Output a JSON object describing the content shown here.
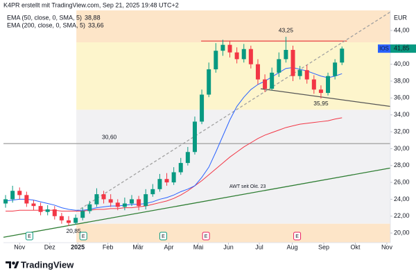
{
  "chart_data": {
    "type": "candlestick",
    "title": "K4PR erstellt mit TradingView.com, Sep 21, 2025 19:48 UTC+2",
    "symbol": "IOS",
    "currency": "EUR",
    "last_label": "41,85",
    "brand": "TradingView",
    "up_color": "#089981",
    "down_color": "#f23645",
    "x": [
      -2,
      -1,
      0,
      1,
      2,
      3,
      4,
      5,
      6,
      7,
      8,
      9,
      10,
      11,
      12,
      13,
      14,
      15,
      16,
      17,
      18,
      19,
      20,
      21,
      22,
      23,
      24,
      25,
      26,
      27,
      28,
      29,
      30,
      31,
      32,
      33,
      34,
      35,
      36,
      37,
      38,
      39,
      40,
      41,
      42,
      43,
      44,
      45,
      46
    ],
    "open": [
      23.5,
      24.0,
      25.0,
      24.5,
      23.5,
      23.2,
      22.5,
      22.8,
      22.0,
      21.5,
      21.2,
      21.8,
      22.6,
      23.4,
      24.6,
      24.0,
      23.6,
      23.1,
      23.5,
      24.0,
      23.2,
      24.6,
      25.2,
      26.4,
      26.0,
      27.2,
      28.3,
      29.6,
      33.2,
      36.4,
      39.4,
      41.6,
      42.3,
      41.4,
      40.6,
      41.8,
      40.0,
      38.2,
      37.1,
      39.0,
      40.6,
      41.7,
      38.6,
      39.3,
      38.2,
      37.0,
      36.6,
      38.6,
      40.2
    ],
    "high": [
      24.5,
      25.6,
      25.4,
      24.9,
      23.9,
      23.6,
      23.3,
      23.2,
      22.4,
      22.0,
      22.2,
      23.0,
      23.8,
      25.3,
      25.0,
      24.6,
      24.0,
      24.2,
      24.5,
      24.4,
      25.2,
      25.8,
      27.0,
      27.1,
      27.8,
      28.9,
      30.2,
      33.8,
      37.0,
      40.2,
      42.5,
      42.9,
      42.8,
      42.0,
      42.4,
      42.2,
      40.6,
      38.8,
      39.6,
      41.4,
      43.25,
      42.2,
      39.8,
      39.9,
      38.7,
      37.5,
      39.0,
      40.6,
      42.1
    ],
    "low": [
      23.0,
      23.6,
      24.0,
      23.1,
      22.7,
      22.1,
      22.1,
      21.6,
      21.1,
      20.85,
      21.0,
      21.5,
      22.3,
      23.1,
      23.5,
      23.1,
      22.7,
      22.7,
      23.2,
      22.7,
      22.8,
      24.3,
      24.9,
      25.6,
      25.7,
      26.9,
      28.0,
      29.3,
      32.9,
      36.1,
      39.0,
      41.0,
      40.8,
      40.1,
      40.2,
      39.5,
      37.6,
      36.7,
      36.9,
      38.5,
      40.2,
      38.0,
      38.2,
      37.7,
      36.5,
      35.95,
      36.3,
      38.2,
      39.9
    ],
    "close": [
      24.0,
      25.0,
      24.5,
      23.5,
      23.2,
      22.5,
      22.8,
      22.0,
      21.5,
      21.2,
      21.8,
      22.6,
      23.4,
      24.6,
      24.0,
      23.6,
      23.1,
      23.5,
      24.0,
      23.2,
      24.6,
      25.2,
      26.4,
      26.0,
      27.2,
      28.3,
      29.6,
      33.2,
      36.4,
      39.4,
      41.6,
      42.3,
      41.4,
      40.6,
      41.8,
      40.0,
      38.2,
      37.1,
      39.0,
      40.6,
      41.7,
      38.6,
      39.3,
      38.2,
      37.0,
      36.6,
      38.6,
      40.2,
      41.85
    ],
    "series": [
      {
        "name": "EMA (200, close, 0, SMA, 5)",
        "color": "#f23645",
        "value_label": "33,66",
        "values": [
          22.6,
          22.6,
          22.7,
          22.7,
          22.7,
          22.7,
          22.7,
          22.7,
          22.6,
          22.6,
          22.6,
          22.6,
          22.7,
          22.8,
          22.8,
          22.9,
          22.9,
          23.0,
          23.0,
          23.1,
          23.2,
          23.4,
          23.6,
          23.8,
          24.1,
          24.5,
          25.0,
          25.6,
          26.2,
          26.9,
          27.6,
          28.3,
          29.0,
          29.6,
          30.2,
          30.7,
          31.2,
          31.6,
          31.9,
          32.2,
          32.5,
          32.7,
          32.9,
          33.0,
          33.1,
          33.2,
          33.3,
          33.5,
          33.66
        ]
      },
      {
        "name": "EMA (50, close, 0, SMA, 5)",
        "color": "#2962ff",
        "value_label": "38,88",
        "values": [
          23.8,
          23.9,
          24.0,
          24.0,
          23.9,
          23.7,
          23.5,
          23.3,
          23.0,
          22.8,
          22.7,
          22.7,
          22.8,
          23.0,
          23.1,
          23.2,
          23.2,
          23.3,
          23.4,
          23.4,
          23.5,
          23.7,
          24.0,
          24.2,
          24.5,
          24.9,
          25.2,
          25.6,
          26.6,
          27.8,
          29.6,
          31.5,
          33.4,
          35.0,
          36.1,
          37.0,
          37.6,
          38.0,
          38.5,
          39.0,
          39.5,
          39.6,
          39.4,
          39.2,
          38.9,
          38.6,
          38.4,
          38.6,
          38.88
        ]
      }
    ],
    "xlim": [
      -2.3,
      52.9
    ],
    "xticks": [
      {
        "value": 0,
        "label": "Nov"
      },
      {
        "value": 4.3,
        "label": "Dez"
      },
      {
        "value": 8.3,
        "label": "2025"
      },
      {
        "value": 12.6,
        "label": "Feb"
      },
      {
        "value": 16.9,
        "label": "Mär"
      },
      {
        "value": 21.3,
        "label": "Apr"
      },
      {
        "value": 25.5,
        "label": "Mai"
      },
      {
        "value": 29.8,
        "label": "Jun"
      },
      {
        "value": 34.2,
        "label": "Jul"
      },
      {
        "value": 38.9,
        "label": "Aug"
      },
      {
        "value": 43.4,
        "label": "Sep"
      },
      {
        "value": 47.9,
        "label": "Okt"
      },
      {
        "value": 52.4,
        "label": "Nov"
      }
    ],
    "ylim": [
      18.86,
      46.38
    ],
    "yticks": [
      {
        "value": 20,
        "label": "20,00"
      },
      {
        "value": 22,
        "label": "22,00"
      },
      {
        "value": 24,
        "label": "24,00"
      },
      {
        "value": 26,
        "label": "26,00"
      },
      {
        "value": 28,
        "label": "28,00"
      },
      {
        "value": 30,
        "label": "30,00"
      },
      {
        "value": 32,
        "label": "32,00"
      },
      {
        "value": 34,
        "label": "34,00"
      },
      {
        "value": 36,
        "label": "36,00"
      },
      {
        "value": 38,
        "label": "38,00"
      },
      {
        "value": 40,
        "label": "40,00"
      },
      {
        "value": 42,
        "label": "42,00"
      },
      {
        "value": 44,
        "label": "44,00"
      }
    ],
    "grid": false,
    "zones": [
      {
        "xlim": [
          8.1,
          52.9
        ],
        "ylim": [
          42.6,
          46.38
        ],
        "color": "#fde5c8"
      },
      {
        "xlim": [
          8.1,
          52.9
        ],
        "ylim": [
          34.6,
          42.6
        ],
        "color": "#fdf5cc"
      },
      {
        "xlim": [
          8.1,
          52.9
        ],
        "ylim": [
          21.1,
          34.6
        ],
        "color": "#f1f1f3"
      },
      {
        "xlim": [
          8.1,
          52.9
        ],
        "ylim": [
          18.86,
          21.1
        ],
        "color": "#fde5c8"
      }
    ],
    "levels": [
      {
        "value": 42.75,
        "xlim": [
          25.9,
          46.7
        ],
        "color": "#e53935"
      },
      {
        "value": 30.6,
        "xlim": [
          -2.3,
          52.9
        ],
        "color": "#9e9e9e"
      }
    ],
    "trendlines": [
      {
        "x": [
          -2.3,
          52.9
        ],
        "y": [
          19.5,
          27.7
        ],
        "color": "#2e7d32",
        "label": "AWT seit Okt. 23",
        "dash": false
      },
      {
        "x": [
          8.1,
          52.9
        ],
        "y": [
          22.55,
          46.2
        ],
        "color": "#a0a0a0",
        "dash": true
      },
      {
        "x": [
          34.4,
          52.9
        ],
        "y": [
          37.1,
          35.0
        ],
        "color": "#555555",
        "dash": false
      }
    ],
    "annotations": [
      {
        "value": 43.25,
        "label": "43,25",
        "x": 38.0
      },
      {
        "value": 35.95,
        "label": "35,95",
        "x": 43.0
      },
      {
        "value": 30.6,
        "label": "30,60",
        "x": 12.8
      },
      {
        "value": 20.85,
        "label": "20,85",
        "x": 7.7
      }
    ],
    "events": [
      {
        "x": 1.4,
        "label": "E",
        "color": "#089981"
      },
      {
        "x": 9.1,
        "label": "E",
        "color": "#089981"
      },
      {
        "x": 20.5,
        "label": "E",
        "color": "#089981"
      },
      {
        "x": 26.6,
        "label": "E",
        "color": "#e91e63"
      },
      {
        "x": 39.6,
        "label": "E",
        "color": "#e91e63"
      }
    ]
  }
}
